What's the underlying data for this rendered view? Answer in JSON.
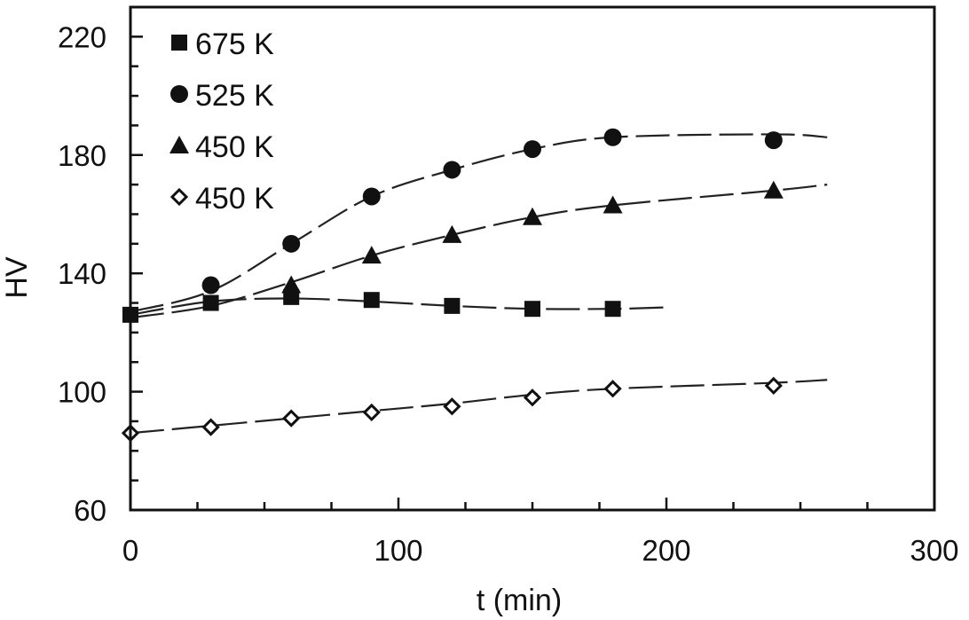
{
  "chart_data": {
    "type": "scatter",
    "xlabel": "t (min)",
    "ylabel": "HV",
    "xlim": [
      0,
      300
    ],
    "ylim": [
      60,
      230
    ],
    "x_ticks": [
      0,
      100,
      200,
      300
    ],
    "y_ticks": [
      60,
      100,
      140,
      180,
      220
    ],
    "grid": false,
    "legend_position": "top-left",
    "series": [
      {
        "name": "675 K",
        "marker": "square-filled",
        "x": [
          0,
          30,
          60,
          90,
          120,
          150,
          180
        ],
        "y": [
          126,
          130,
          132,
          131,
          129,
          128,
          128
        ],
        "fit_x": [
          0,
          30,
          60,
          90,
          120,
          150,
          180,
          200
        ],
        "fit_y": [
          126,
          130.5,
          131.5,
          130.5,
          129,
          128,
          128,
          128.5
        ]
      },
      {
        "name": "525 K",
        "marker": "circle-filled",
        "x": [
          30,
          60,
          90,
          120,
          150,
          180,
          240
        ],
        "y": [
          136,
          150,
          166,
          175,
          182,
          186,
          185
        ],
        "fit_x": [
          0,
          30,
          60,
          90,
          120,
          150,
          180,
          240,
          260
        ],
        "fit_y": [
          127,
          134,
          150,
          166,
          175,
          182,
          186,
          187,
          186
        ]
      },
      {
        "name": "450 K",
        "marker": "triangle-filled",
        "x": [
          60,
          90,
          120,
          150,
          180,
          240
        ],
        "y": [
          136,
          146,
          153,
          159,
          163,
          168
        ],
        "fit_x": [
          0,
          30,
          60,
          90,
          120,
          150,
          180,
          240,
          260
        ],
        "fit_y": [
          125,
          129,
          137,
          146,
          153,
          159,
          163,
          168,
          170
        ]
      },
      {
        "name": "450 K",
        "marker": "diamond-open",
        "x": [
          0,
          30,
          60,
          90,
          120,
          150,
          180,
          240
        ],
        "y": [
          86,
          88,
          91,
          93,
          95,
          98,
          101,
          102
        ],
        "fit_x": [
          0,
          30,
          60,
          90,
          120,
          150,
          180,
          240,
          260
        ],
        "fit_y": [
          86,
          88.5,
          91,
          93.5,
          96,
          99,
          101,
          103,
          104
        ]
      }
    ]
  }
}
